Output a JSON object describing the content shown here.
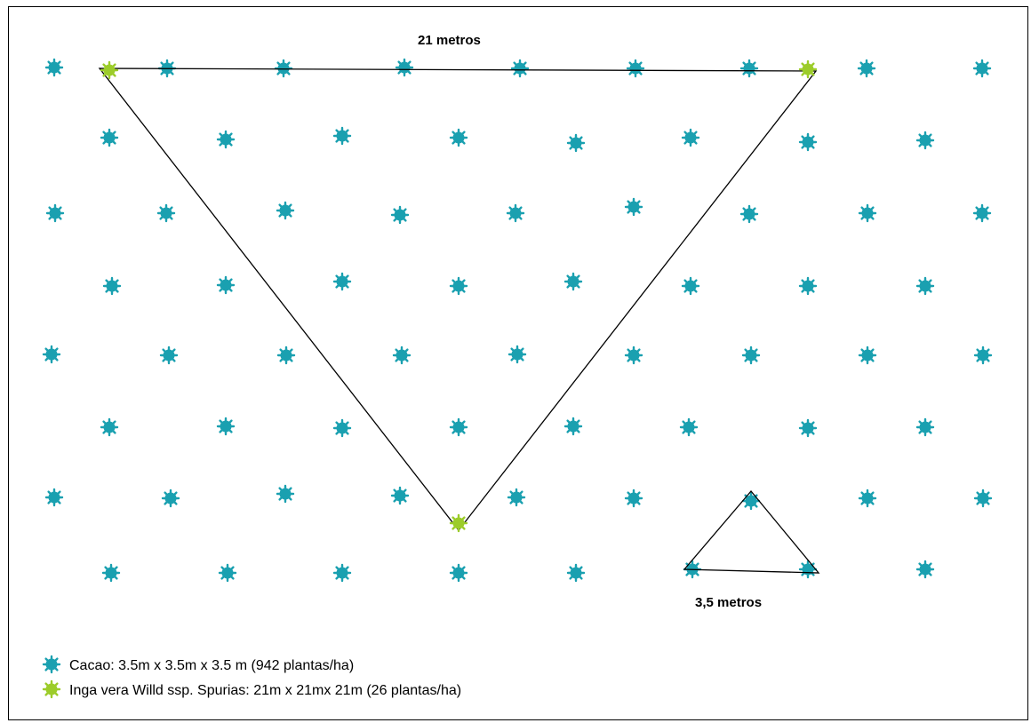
{
  "diagram": {
    "top_label": "21 metros",
    "small_label": "3,5 metros",
    "colors": {
      "cacao": "#1aa0b0",
      "inga": "#9ccc2a",
      "line": "#000000"
    },
    "legend": [
      {
        "icon": "cacao-plant-icon",
        "text": "Cacao: 3.5m x 3.5m x 3.5 m (942 plantas/ha)"
      },
      {
        "icon": "inga-plant-icon",
        "text": "Inga vera Willd ssp. Spurias: 21m x 21mx 21m (26 plantas/ha)"
      }
    ]
  }
}
